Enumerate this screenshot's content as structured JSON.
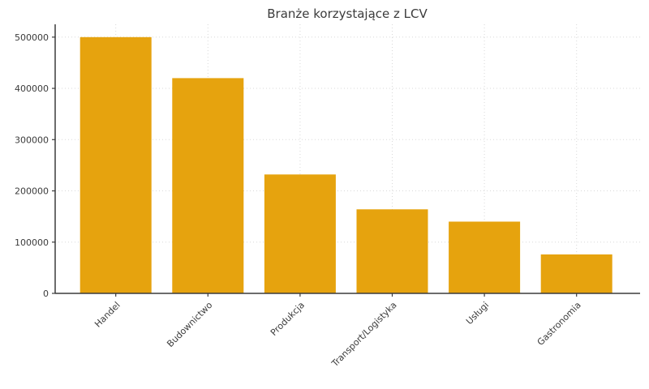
{
  "page": {
    "title": "Branże korzystające z LCV"
  },
  "colors": {
    "bar": "#E6A30E",
    "grid": "#d8d8d8",
    "axis": "#3b3b3b",
    "text": "#3b3b3b",
    "background": "#ffffff"
  },
  "chart_data": {
    "type": "bar",
    "title": "Branże korzystające z LCV",
    "categories": [
      "Handel",
      "Budownictwo",
      "Produkcja",
      "Transport/Logistyka",
      "Usługi",
      "Gastronomia"
    ],
    "values": [
      500000,
      420000,
      232000,
      164000,
      140000,
      76000
    ],
    "xlabel": "",
    "ylabel": "",
    "ylim": [
      0,
      525000
    ],
    "yticks": [
      0,
      100000,
      200000,
      300000,
      400000,
      500000
    ],
    "ytick_labels": [
      "0",
      "100000",
      "200000",
      "300000",
      "400000",
      "500000"
    ],
    "grid": true,
    "grid_style": "dotted",
    "legend": false,
    "bar_color": "#E6A30E",
    "x_tick_rotation": 45
  }
}
